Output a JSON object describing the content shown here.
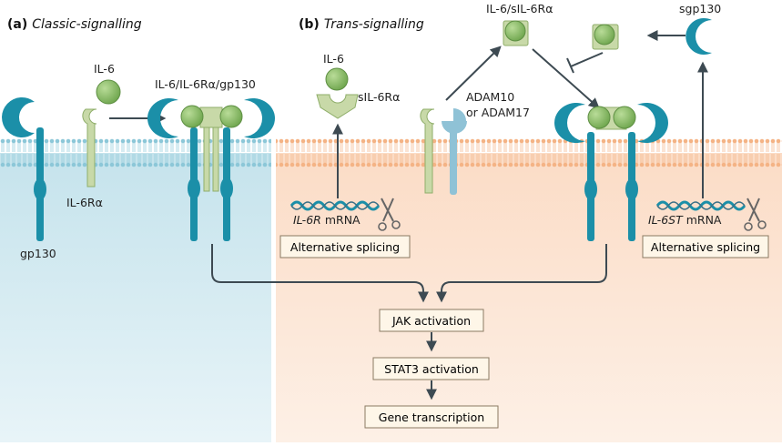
{
  "panel_a": {
    "letter": "(a)",
    "title": "Classic-signalling",
    "labels": {
      "il6": "IL-6",
      "il6ra": "IL-6Rα",
      "gp130": "gp130",
      "complex": "IL-6/IL-6Rα/gp130"
    }
  },
  "panel_b": {
    "letter": "(b)",
    "title": "Trans-signalling",
    "labels": {
      "il6": "IL-6",
      "sil6ra": "sIL-6Rα",
      "adam_1": "ADAM10",
      "adam_2": "or ADAM17",
      "complex": "IL-6/sIL-6Rα",
      "sgp130": "sgp130",
      "il6r_gene": "IL-6R",
      "il6st_gene": "IL-6ST",
      "mrna": "mRNA"
    }
  },
  "boxes": {
    "splice_left": "Alternative splicing",
    "splice_right": "Alternative splicing",
    "jak": "JAK activation",
    "stat3": "STAT3 activation",
    "gene": "Gene transcription"
  },
  "colors": {
    "receptor_teal": "#1b8fa8",
    "il6_green": "#8cbf6a",
    "il6ra_green": "#c8d9a8",
    "adam_blue": "#8fc2d6",
    "panel_a_bg": "#c5e3ec",
    "panel_b_bg": "#fbdcc6",
    "arrow": "#3d4a52"
  }
}
